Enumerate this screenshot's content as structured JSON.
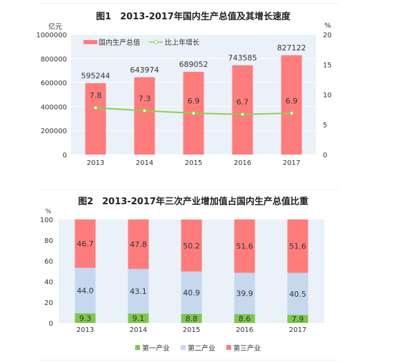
{
  "chart_data": [
    {
      "type": "bar",
      "title": "图1　2013-2017年国内生产总值及其增长速度",
      "categories": [
        "2013",
        "2014",
        "2015",
        "2016",
        "2017"
      ],
      "ylabel": "亿元",
      "ylabel_right": "%",
      "ylim": [
        0,
        1000000
      ],
      "ylim_right": [
        0,
        20
      ],
      "yticks": [
        "0",
        "200000",
        "400000",
        "600000",
        "800000",
        "1000000"
      ],
      "yticks_right": [
        "0",
        "5",
        "10",
        "15",
        "20"
      ],
      "legend_position": "top-left",
      "series": [
        {
          "name": "国内生产总值",
          "type": "bar",
          "axis": "left",
          "values": [
            595244,
            643974,
            689052,
            743585,
            827122
          ],
          "labels": [
            "595244",
            "643974",
            "689052",
            "743585",
            "827122"
          ],
          "color": "#ff7c7c"
        },
        {
          "name": "比上年增长",
          "type": "line",
          "axis": "right",
          "values": [
            7.8,
            7.3,
            6.9,
            6.7,
            6.9
          ],
          "labels": [
            "7.8",
            "7.3",
            "6.9",
            "6.7",
            "6.9"
          ],
          "color": "#8ccf4d"
        }
      ]
    },
    {
      "type": "stacked-bar",
      "title": "图2　2013-2017年三次产业增加值占国内生产总值比重",
      "categories": [
        "2013",
        "2014",
        "2015",
        "2016",
        "2017"
      ],
      "ylabel": "%",
      "ylim": [
        0,
        100
      ],
      "yticks": [
        "0",
        "20",
        "40",
        "60",
        "80",
        "100"
      ],
      "legend_position": "bottom",
      "series": [
        {
          "name": "第一产业",
          "values": [
            9.3,
            9.1,
            8.8,
            8.6,
            7.9
          ],
          "labels": [
            "9.3",
            "9.1",
            "8.8",
            "8.6",
            "7.9"
          ],
          "color": "#7cc84a"
        },
        {
          "name": "第二产业",
          "values": [
            44.0,
            43.1,
            40.9,
            39.9,
            40.5
          ],
          "labels": [
            "44.0",
            "43.1",
            "40.9",
            "39.9",
            "40.5"
          ],
          "color": "#c6d7ee"
        },
        {
          "name": "第三产业",
          "values": [
            46.7,
            47.8,
            50.2,
            51.6,
            51.6
          ],
          "labels": [
            "46.7",
            "47.8",
            "50.2",
            "51.6",
            "51.6"
          ],
          "color": "#ff7c7c"
        }
      ]
    }
  ]
}
